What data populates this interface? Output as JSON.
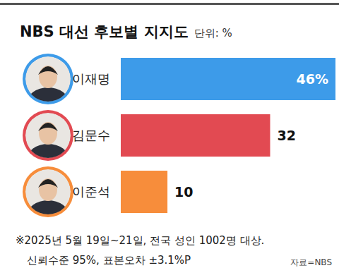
{
  "chart_data": {
    "type": "bar",
    "orientation": "horizontal",
    "title": "NBS 대선 후보별 지지도",
    "subtitle": "단위: %",
    "categories": [
      "이재명",
      "김문수",
      "이준석"
    ],
    "values": [
      46,
      32,
      10
    ],
    "value_labels": [
      "46%",
      "32",
      "10"
    ],
    "colors": [
      "#3d9be9",
      "#e24a52",
      "#f78d3b"
    ],
    "xlim": [
      0,
      46
    ],
    "tick_labels": false,
    "data_labels": true,
    "annotations": [
      "※2025년 5월 19일~21일, 전국 성인 1002명 대상.",
      "신뢰수준 95%, 표본오차 ±3.1%P"
    ],
    "source": "자료=NBS"
  }
}
